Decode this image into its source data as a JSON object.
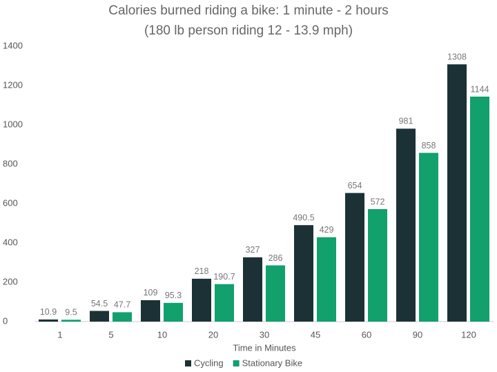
{
  "chart_data": {
    "type": "bar",
    "title": "Calories burned riding a bike: 1 minute - 2 hours",
    "subtitle": "(180 lb person riding 12 - 13.9 mph)",
    "x_label": "Time in Minutes",
    "categories": [
      "1",
      "5",
      "10",
      "20",
      "30",
      "45",
      "60",
      "90",
      "120"
    ],
    "series": [
      {
        "name": "Cycling",
        "color": "#1c3136",
        "values": [
          10.9,
          54.5,
          109,
          218,
          327,
          490.5,
          654,
          981,
          1308
        ]
      },
      {
        "name": "Stationary Bike",
        "color": "#12a06d",
        "values": [
          9.5,
          47.7,
          95.3,
          190.7,
          286,
          429,
          572,
          858,
          1144
        ]
      }
    ],
    "ylim": [
      0,
      1400
    ],
    "yticks": [
      0,
      200,
      400,
      600,
      800,
      1000,
      1200,
      1400
    ],
    "grid": false,
    "show_value_labels": true,
    "legend": "bottom"
  }
}
